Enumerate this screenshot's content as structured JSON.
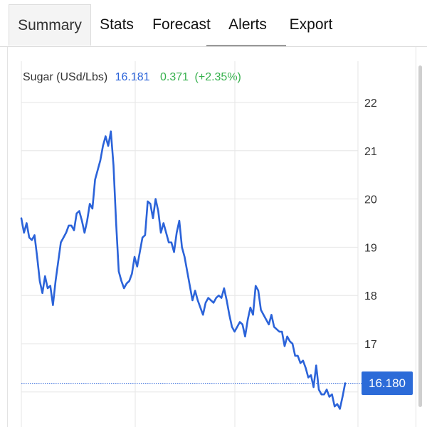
{
  "tabs": [
    {
      "label": "Summary",
      "active": true
    },
    {
      "label": "Stats",
      "active": false
    },
    {
      "label": "Forecast",
      "active": false
    },
    {
      "label": "Alerts",
      "active": false
    },
    {
      "label": "Export",
      "active": false
    }
  ],
  "header": {
    "name": "Sugar (USd/Lbs)",
    "price": "16.181",
    "change": "0.371",
    "change_pct": "(+2.35%)"
  },
  "price_tag": "16.180",
  "colors": {
    "line": "#2b63d9",
    "positive": "#35b04c",
    "tag": "#2c6bd8",
    "grid": "#e6e6e6"
  },
  "chart_data": {
    "type": "line",
    "title": "",
    "xlabel": "",
    "ylabel": "",
    "ylim": [
      16,
      22.2
    ],
    "yticks": [
      17,
      18,
      19,
      20,
      21,
      22
    ],
    "y_axis_position": "right",
    "grid": true,
    "current_value": 16.18,
    "series": [
      {
        "values": [
          19.6,
          19.3,
          19.5,
          19.2,
          19.15,
          19.25,
          18.8,
          18.3,
          18.05,
          18.4,
          18.15,
          18.2,
          17.8,
          18.3,
          18.7,
          19.1,
          19.2,
          19.3,
          19.45,
          19.45,
          19.35,
          19.7,
          19.75,
          19.55,
          19.3,
          19.55,
          19.9,
          19.8,
          20.4,
          20.6,
          20.8,
          21.1,
          21.3,
          21.1,
          21.4,
          20.7,
          19.5,
          18.5,
          18.3,
          18.15,
          18.25,
          18.3,
          18.45,
          18.8,
          18.6,
          18.9,
          19.2,
          19.25,
          19.95,
          19.9,
          19.6,
          20.0,
          19.75,
          19.3,
          19.5,
          19.3,
          19.1,
          19.1,
          18.9,
          19.3,
          19.55,
          19.0,
          18.8,
          18.5,
          18.2,
          17.9,
          18.1,
          17.9,
          17.75,
          17.6,
          17.85,
          17.95,
          17.9,
          17.85,
          17.95,
          18.0,
          17.95,
          18.15,
          17.9,
          17.6,
          17.35,
          17.25,
          17.35,
          17.45,
          17.4,
          17.15,
          17.5,
          17.75,
          17.6,
          18.2,
          18.1,
          17.7,
          17.6,
          17.5,
          17.4,
          17.6,
          17.35,
          17.3,
          17.25,
          17.25,
          16.95,
          17.15,
          17.05,
          17.0,
          16.75,
          16.75,
          16.6,
          16.65,
          16.5,
          16.3,
          16.35,
          16.1,
          16.55,
          16.05,
          15.95,
          15.95,
          16.05,
          15.9,
          15.95,
          15.7,
          15.75,
          15.65,
          15.9,
          16.181
        ]
      }
    ]
  }
}
